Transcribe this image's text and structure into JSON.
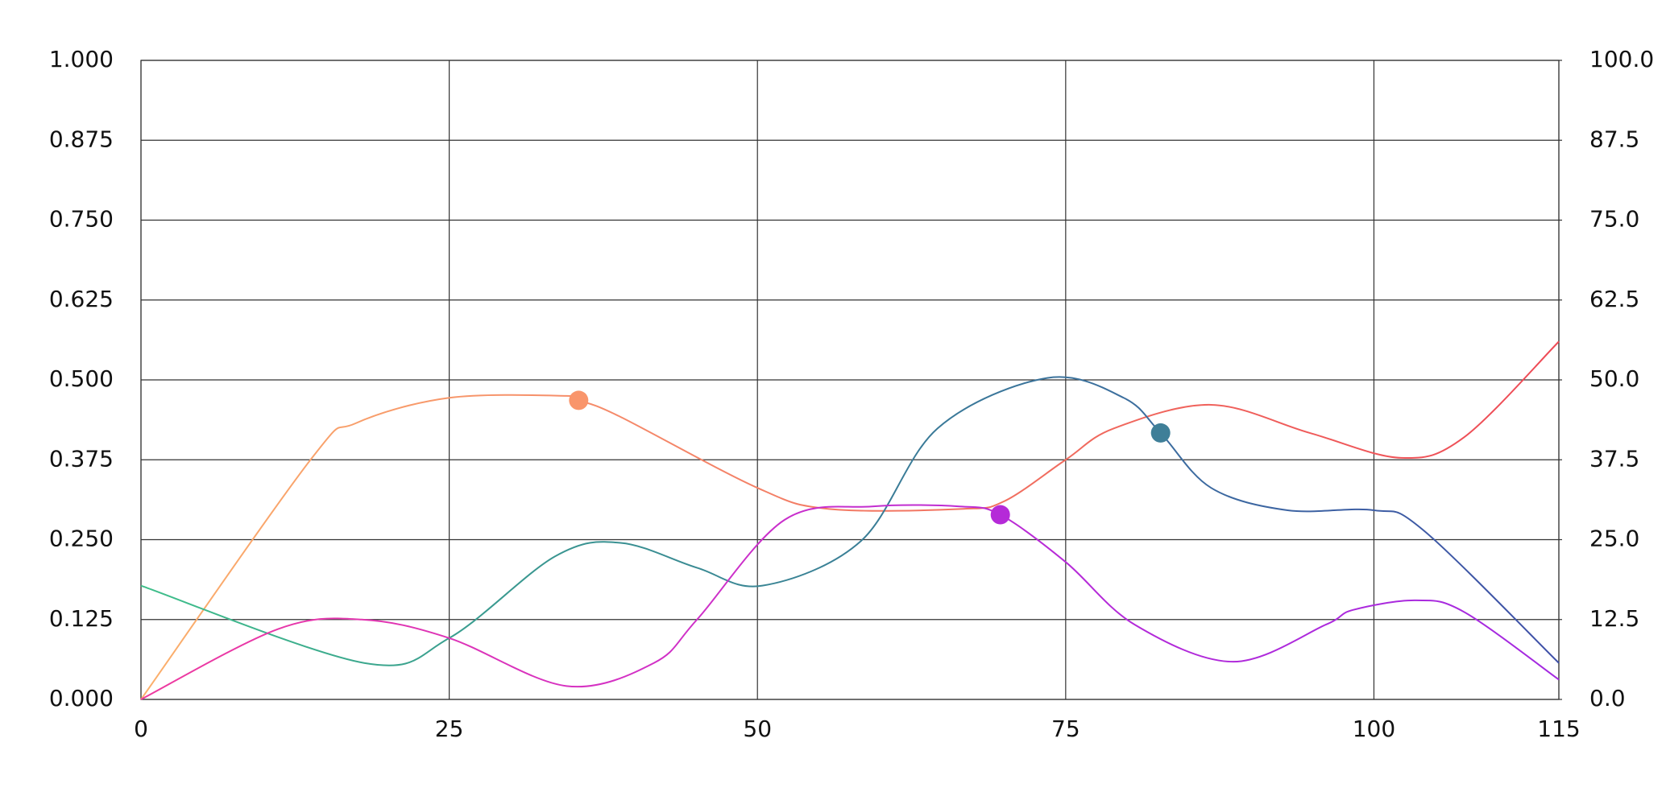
{
  "chart_data": {
    "type": "line",
    "xlim": [
      0,
      115
    ],
    "xticks": [
      0,
      25,
      50,
      75,
      100,
      115
    ],
    "ylim": [
      0,
      1
    ],
    "yticks": [
      {
        "value": 0,
        "label": "0.000"
      },
      0.125,
      {
        "value": 0.25,
        "label": "0.250"
      },
      0.375,
      {
        "value": 0.5,
        "label": "0.500"
      },
      0.625,
      {
        "value": 0.75,
        "label": "0.750"
      },
      0.875,
      {
        "value": 1,
        "label": "1.000"
      }
    ],
    "y2lim": [
      0,
      100
    ],
    "y2ticks": [
      {
        "value": 0,
        "label": "0.0"
      },
      12.5,
      {
        "value": 25,
        "label": "25.0"
      },
      37.5,
      {
        "value": 50,
        "label": "50.0"
      },
      62.5,
      {
        "value": 75,
        "label": "75.0"
      },
      87.5,
      {
        "value": 100,
        "label": "100.0"
      }
    ],
    "grid": true,
    "series": [
      {
        "colors": [
          "#fbb06c",
          "#f58a6a",
          "#f06a5e",
          "#ee4a56"
        ],
        "x": [
          0,
          13.75,
          17.4,
          25,
          34.5,
          35.5,
          38.8,
          50,
          55.8,
          66.5,
          70,
          75,
          78.9,
          86.8,
          94.8,
          102.2,
          107.3,
          115
        ],
        "values": [
          0,
          0.375,
          0.432,
          0.472,
          0.475,
          0.468,
          0.443,
          0.331,
          0.298,
          0.298,
          0.31,
          0.375,
          0.424,
          0.461,
          0.417,
          0.378,
          0.41,
          0.56
        ]
      },
      {
        "colors": [
          "#3fbf8a",
          "#3a9a90",
          "#3a7f96",
          "#3c6aa0",
          "#3f50a8"
        ],
        "x": [
          0,
          18.1,
          25,
          33.6,
          38.9,
          45.1,
          50.4,
          58.4,
          64.6,
          73.5,
          79.7,
          82.7,
          86.8,
          93,
          100,
          104,
          115
        ],
        "values": [
          0.178,
          0.057,
          0.096,
          0.224,
          0.245,
          0.206,
          0.178,
          0.248,
          0.424,
          0.503,
          0.472,
          0.417,
          0.331,
          0.296,
          0.296,
          0.265,
          0.057
        ]
      },
      {
        "colors": [
          "#ee3a9e",
          "#d431c4",
          "#b52ad8",
          "#a42ae0"
        ],
        "x": [
          0,
          11.1,
          17.9,
          25,
          34.5,
          41.6,
          45.1,
          52.2,
          59.3,
          66.4,
          69.7,
          75,
          80.6,
          88.6,
          96.1,
          98.3,
          103.4,
          107.3,
          115
        ],
        "values": [
          0,
          0.11,
          0.125,
          0.096,
          0.021,
          0.057,
          0.125,
          0.281,
          0.302,
          0.302,
          0.289,
          0.215,
          0.117,
          0.059,
          0.117,
          0.14,
          0.155,
          0.137,
          0.031
        ]
      }
    ],
    "points": [
      {
        "x": 35.5,
        "y": 0.468,
        "color": "#f9956b"
      },
      {
        "x": 82.7,
        "y": 0.417,
        "color": "#3f7f98"
      },
      {
        "x": 69.7,
        "y": 0.289,
        "color": "#b52ad8"
      }
    ]
  }
}
